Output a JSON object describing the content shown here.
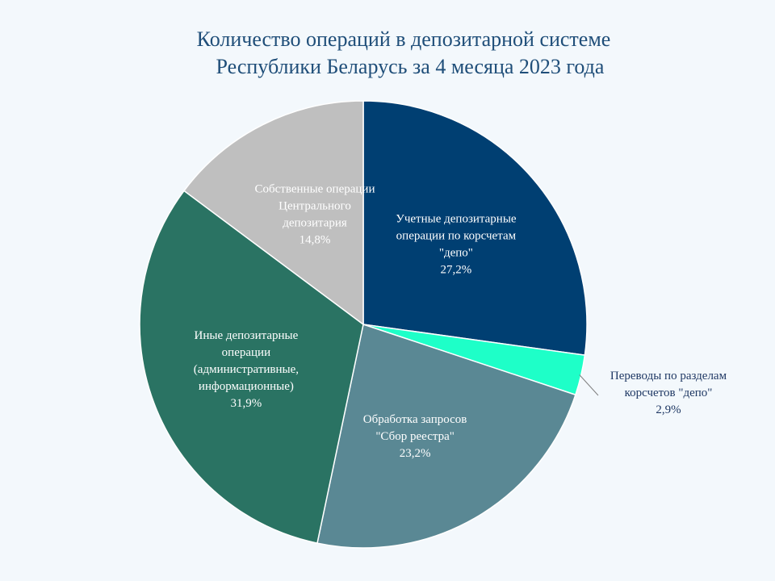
{
  "chart_data": {
    "type": "pie",
    "title": "Количество операций в  депозитарной системе Республики Беларусь за 4 месяца 2023 года",
    "title_lines": [
      "Количество операций в  депозитарной системе",
      "Республики Беларусь за 4 месяца 2023 года"
    ],
    "start_angle_deg": 0,
    "direction": "clockwise",
    "slices": [
      {
        "label_lines": [
          "Учетные депозитарные",
          "операции  по корсчетам",
          "\"депо\""
        ],
        "value_label": "27,2%",
        "value": 27.2,
        "color": "#003f72",
        "label_color": "#ffffff",
        "label_position": "inside"
      },
      {
        "label_lines": [
          "Переводы по разделам",
          "корсчетов \"депо\""
        ],
        "value_label": "2,9%",
        "value": 2.9,
        "color": "#1effc8",
        "label_color": "#1f3864",
        "label_position": "outside"
      },
      {
        "label_lines": [
          "Обработка запросов",
          "\"Сбор реестра\""
        ],
        "value_label": "23,2%",
        "value": 23.2,
        "color": "#5a8894",
        "label_color": "#ffffff",
        "label_position": "inside"
      },
      {
        "label_lines": [
          "Иные депозитарные",
          "операции",
          "(административные,",
          "информационные)"
        ],
        "value_label": "31,9%",
        "value": 31.9,
        "color": "#2a7363",
        "label_color": "#ffffff",
        "label_position": "inside"
      },
      {
        "label_lines": [
          "Собственные  операции",
          "Центрального",
          "депозитария"
        ],
        "value_label": "14,8%",
        "value": 14.8,
        "color": "#bfbfbf",
        "label_color": "#ffffff",
        "label_position": "inside"
      }
    ]
  }
}
